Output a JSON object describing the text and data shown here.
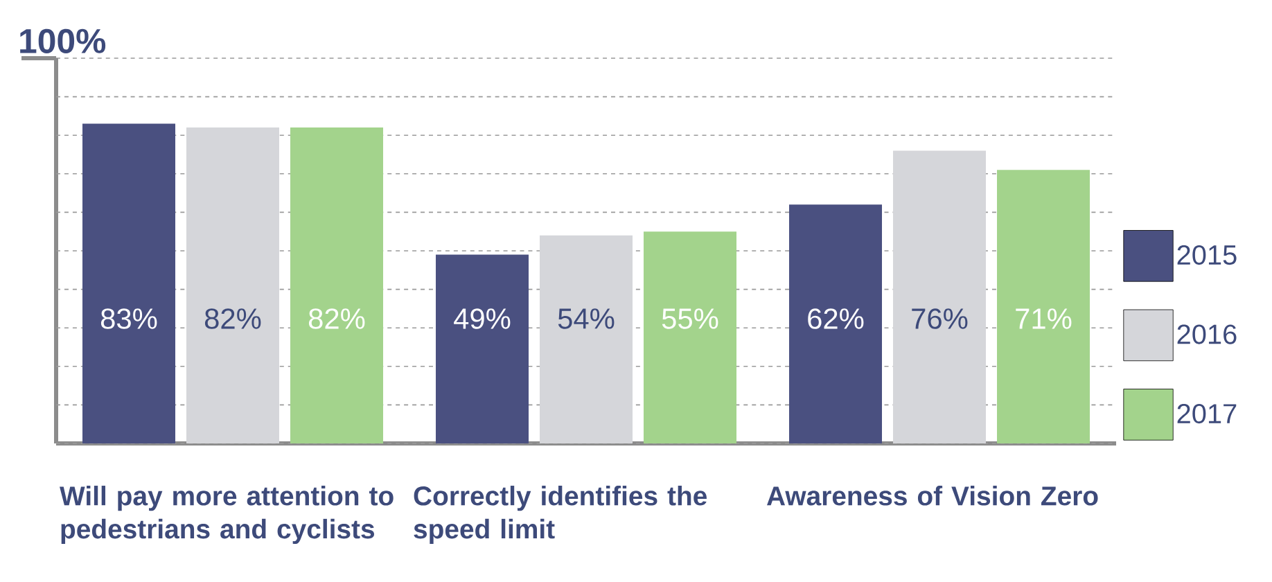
{
  "chart_data": {
    "type": "bar",
    "categories": [
      "Will pay more attention to pedestrians and cyclists",
      "Correctly identifies the speed limit",
      "Awareness of Vision Zero"
    ],
    "series": [
      {
        "name": "2015",
        "color": "#4a5080",
        "values": [
          83,
          49,
          62
        ],
        "value_labels": [
          "83%",
          "49%",
          "62%"
        ]
      },
      {
        "name": "2016",
        "color": "#d5d6da",
        "values": [
          82,
          54,
          76
        ],
        "value_labels": [
          "82%",
          "54%",
          "76%"
        ]
      },
      {
        "name": "2017",
        "color": "#a3d38c",
        "values": [
          82,
          55,
          71
        ],
        "value_labels": [
          "82%",
          "55%",
          "71%"
        ]
      }
    ],
    "ylim": [
      0,
      100
    ],
    "yticks": [
      {
        "value": 0,
        "label": null
      },
      {
        "value": 10,
        "label": null
      },
      {
        "value": 20,
        "label": null
      },
      {
        "value": 30,
        "label": null
      },
      {
        "value": 40,
        "label": null
      },
      {
        "value": 50,
        "label": null
      },
      {
        "value": 60,
        "label": null
      },
      {
        "value": 70,
        "label": null
      },
      {
        "value": 80,
        "label": null
      },
      {
        "value": 90,
        "label": null
      },
      {
        "value": 100,
        "label": "100%"
      }
    ],
    "grid": "y",
    "legend": "right"
  }
}
